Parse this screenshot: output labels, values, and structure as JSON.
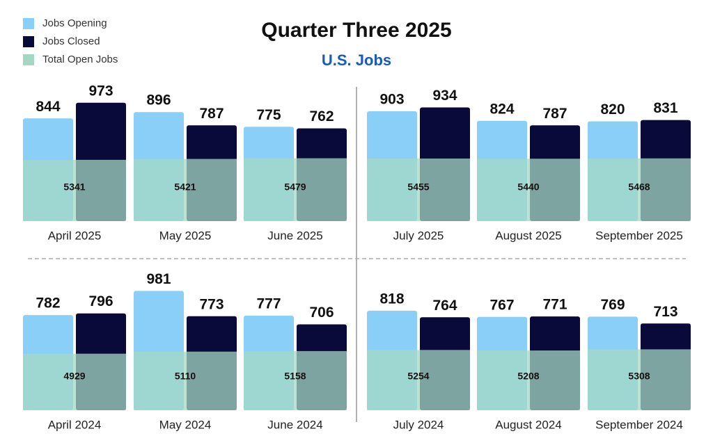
{
  "chart_data": {
    "type": "grouped-bar",
    "title": "Quarter Three 2025",
    "subtitle": "U.S. Jobs",
    "categories": [
      "April 2025",
      "May 2025",
      "June 2025",
      "July 2025",
      "August 2025",
      "September 2025",
      "April 2024",
      "May 2024",
      "June 2024",
      "July 2024",
      "August 2024",
      "September 2024"
    ],
    "series": [
      {
        "name": "Jobs Opening",
        "color": "#89cff8",
        "values": [
          844,
          896,
          775,
          903,
          824,
          820,
          782,
          981,
          777,
          818,
          767,
          769
        ]
      },
      {
        "name": "Jobs Closed",
        "color": "#0a0a3a",
        "values": [
          973,
          787,
          762,
          934,
          787,
          831,
          796,
          773,
          706,
          764,
          771,
          713
        ]
      },
      {
        "name": "Total Open Jobs",
        "color": "#a5d8c4",
        "values": [
          5341,
          5421,
          5479,
          5455,
          5440,
          5468,
          4929,
          5110,
          5158,
          5254,
          5208,
          5308
        ]
      }
    ]
  }
}
